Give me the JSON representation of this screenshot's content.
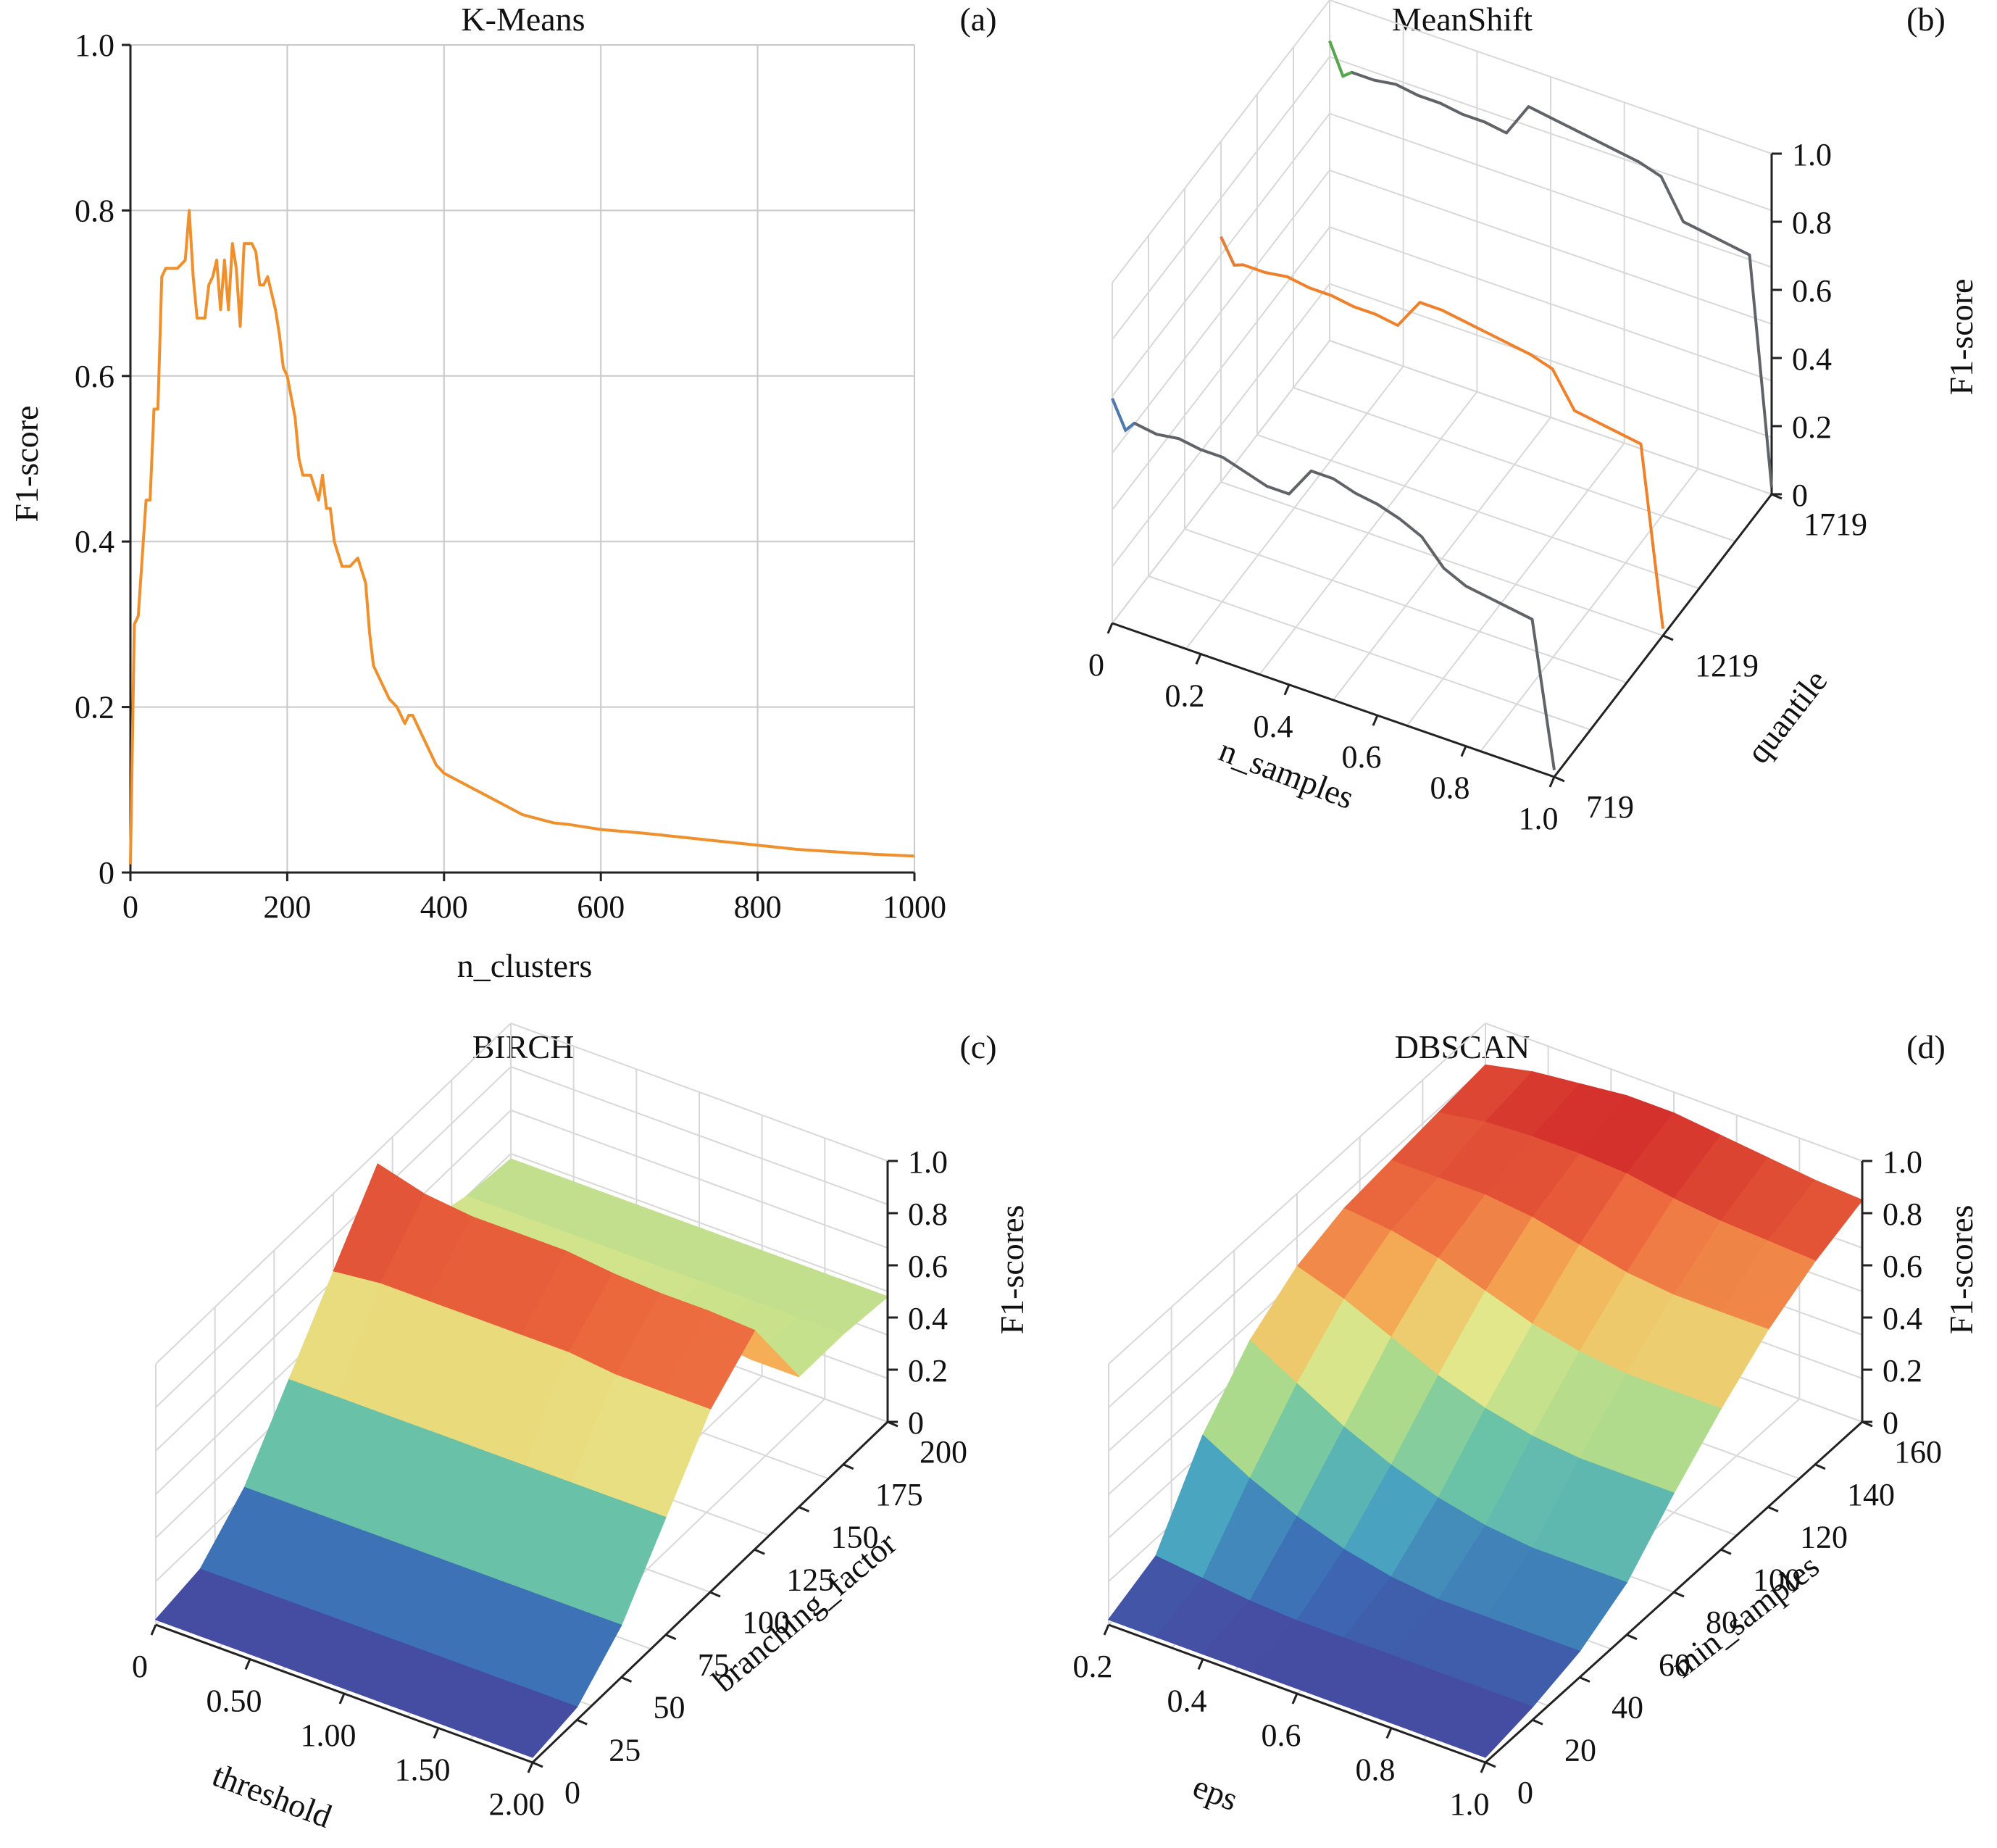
{
  "chart_data": [
    {
      "panel": "(a)",
      "type": "line",
      "title": "K-Means",
      "xlabel": "n_clusters",
      "ylabel": "F1-score",
      "xlim": [
        0,
        1000
      ],
      "ylim": [
        0,
        1.0
      ],
      "xticks": [
        "0",
        "200",
        "400",
        "600",
        "800",
        "1000"
      ],
      "yticks": [
        "0",
        "0.2",
        "0.4",
        "0.6",
        "0.8",
        "1.0"
      ],
      "grid": true,
      "color": "#f0902c",
      "x": [
        0,
        5,
        10,
        20,
        25,
        30,
        35,
        40,
        45,
        50,
        60,
        70,
        75,
        80,
        85,
        90,
        95,
        100,
        105,
        110,
        115,
        120,
        125,
        130,
        135,
        140,
        145,
        150,
        155,
        160,
        165,
        170,
        175,
        180,
        185,
        190,
        195,
        200,
        210,
        215,
        220,
        230,
        240,
        245,
        250,
        255,
        260,
        270,
        280,
        290,
        300,
        305,
        310,
        320,
        330,
        340,
        350,
        355,
        360,
        370,
        380,
        390,
        400,
        420,
        440,
        460,
        480,
        500,
        520,
        540,
        560,
        580,
        600,
        650,
        700,
        750,
        800,
        850,
        900,
        950,
        1000
      ],
      "y": [
        0.01,
        0.3,
        0.31,
        0.45,
        0.45,
        0.56,
        0.56,
        0.72,
        0.73,
        0.73,
        0.73,
        0.74,
        0.8,
        0.72,
        0.67,
        0.67,
        0.67,
        0.71,
        0.72,
        0.74,
        0.68,
        0.74,
        0.68,
        0.76,
        0.73,
        0.66,
        0.76,
        0.76,
        0.76,
        0.75,
        0.71,
        0.71,
        0.72,
        0.7,
        0.68,
        0.65,
        0.61,
        0.6,
        0.55,
        0.5,
        0.48,
        0.48,
        0.45,
        0.48,
        0.44,
        0.44,
        0.4,
        0.37,
        0.37,
        0.38,
        0.35,
        0.29,
        0.25,
        0.23,
        0.21,
        0.2,
        0.18,
        0.19,
        0.19,
        0.17,
        0.15,
        0.13,
        0.12,
        0.11,
        0.1,
        0.09,
        0.08,
        0.07,
        0.065,
        0.06,
        0.058,
        0.055,
        0.052,
        0.048,
        0.043,
        0.038,
        0.033,
        0.028,
        0.025,
        0.022,
        0.02
      ]
    },
    {
      "panel": "(b)",
      "type": "line",
      "projection": "3d",
      "title": "MeanShift",
      "xlabel": "n_samples",
      "ylabel": "quantile",
      "zlabel": "F1-score",
      "xlim": [
        0,
        1.0
      ],
      "ylim": [
        719,
        1719
      ],
      "zlim": [
        0,
        1.0
      ],
      "xticks": [
        "0",
        "0.2",
        "0.4",
        "0.6",
        "0.8",
        "1.0"
      ],
      "yticks": [
        "719",
        "1219",
        "1719"
      ],
      "zticks": [
        "0",
        "0.2",
        "0.4",
        "0.6",
        "0.8",
        "1.0"
      ],
      "grid": true,
      "x": [
        0.0,
        0.03,
        0.05,
        0.1,
        0.15,
        0.2,
        0.25,
        0.3,
        0.35,
        0.4,
        0.45,
        0.5,
        0.55,
        0.6,
        0.65,
        0.7,
        0.75,
        0.8,
        0.85,
        0.9,
        0.95,
        1.0
      ],
      "series": [
        {
          "quantile": 719,
          "color": "#606368",
          "accent": "#4a7fc1",
          "values": [
            0.66,
            0.58,
            0.61,
            0.6,
            0.61,
            0.6,
            0.6,
            0.58,
            0.56,
            0.56,
            0.65,
            0.65,
            0.63,
            0.62,
            0.6,
            0.57,
            0.5,
            0.47,
            0.46,
            0.45,
            0.44,
            0.02
          ]
        },
        {
          "quantile": 1219,
          "color": "#f0802a",
          "accent": "#e0803a",
          "values": [
            0.72,
            0.65,
            0.66,
            0.66,
            0.67,
            0.66,
            0.66,
            0.65,
            0.65,
            0.64,
            0.73,
            0.73,
            0.72,
            0.71,
            0.7,
            0.69,
            0.67,
            0.57,
            0.56,
            0.55,
            0.54,
            0.02
          ]
        },
        {
          "quantile": 1719,
          "color": "#606368",
          "accent": "#54b847",
          "values": [
            0.88,
            0.79,
            0.81,
            0.81,
            0.82,
            0.81,
            0.81,
            0.8,
            0.8,
            0.79,
            0.89,
            0.88,
            0.87,
            0.86,
            0.85,
            0.84,
            0.82,
            0.71,
            0.7,
            0.69,
            0.68,
            0.02
          ]
        }
      ]
    },
    {
      "panel": "(c)",
      "type": "surface",
      "title": "BIRCH",
      "xlabel": "threshold",
      "ylabel": "branching_factor",
      "zlabel": "F1-scores",
      "xlim": [
        0,
        2.0
      ],
      "ylim": [
        0,
        200
      ],
      "zlim": [
        0,
        1.0
      ],
      "xticks": [
        "0",
        "0.50",
        "1.00",
        "1.50",
        "2.00"
      ],
      "yticks": [
        "0",
        "25",
        "50",
        "75",
        "100",
        "125",
        "150",
        "175",
        "200"
      ],
      "zticks": [
        "0",
        "0.2",
        "0.4",
        "0.6",
        "0.8",
        "1.0"
      ],
      "grid": true,
      "x": [
        0,
        0.25,
        0.5,
        0.75,
        1.0,
        1.25,
        1.5,
        1.75,
        2.0
      ],
      "y": [
        0,
        25,
        50,
        75,
        100,
        125,
        150,
        175,
        200
      ],
      "z": [
        [
          0.02,
          0.02,
          0.02,
          0.02,
          0.02,
          0.02,
          0.02,
          0.02,
          0.02
        ],
        [
          0.05,
          0.05,
          0.05,
          0.05,
          0.05,
          0.05,
          0.05,
          0.05,
          0.05
        ],
        [
          0.2,
          0.2,
          0.2,
          0.2,
          0.2,
          0.2,
          0.2,
          0.2,
          0.2
        ],
        [
          0.45,
          0.45,
          0.45,
          0.45,
          0.45,
          0.45,
          0.45,
          0.45,
          0.45
        ],
        [
          0.7,
          0.72,
          0.72,
          0.72,
          0.72,
          0.72,
          0.7,
          0.7,
          0.7
        ],
        [
          0.95,
          0.9,
          0.88,
          0.88,
          0.88,
          0.86,
          0.85,
          0.85,
          0.84
        ],
        [
          0.55,
          0.54,
          0.54,
          0.54,
          0.54,
          0.52,
          0.52,
          0.5,
          0.5
        ],
        [
          0.5,
          0.5,
          0.5,
          0.5,
          0.5,
          0.5,
          0.5,
          0.5,
          0.5
        ],
        [
          0.48,
          0.48,
          0.48,
          0.48,
          0.48,
          0.48,
          0.48,
          0.48,
          0.48
        ]
      ],
      "colormap": [
        "#4a3f9a",
        "#3b6cb5",
        "#4aa6c0",
        "#6cc4a6",
        "#a8d98d",
        "#e4e88a",
        "#f5b257",
        "#ec6a3e",
        "#d4302c",
        "#a51e38"
      ]
    },
    {
      "panel": "(d)",
      "type": "surface",
      "title": "DBSCAN",
      "xlabel": "eps",
      "ylabel": "min_samples",
      "zlabel": "F1-scores",
      "xlim": [
        0.2,
        1.0
      ],
      "ylim": [
        0,
        160
      ],
      "zlim": [
        0,
        1.0
      ],
      "xticks": [
        "0.2",
        "0.4",
        "0.6",
        "0.8",
        "1.0"
      ],
      "yticks": [
        "0",
        "20",
        "40",
        "60",
        "80",
        "100",
        "120",
        "140",
        "160"
      ],
      "zticks": [
        "0",
        "0.2",
        "0.4",
        "0.6",
        "0.8",
        "1.0"
      ],
      "grid": true,
      "x": [
        0.2,
        0.3,
        0.4,
        0.5,
        0.6,
        0.7,
        0.8,
        0.9,
        1.0
      ],
      "y": [
        0,
        20,
        40,
        60,
        80,
        100,
        120,
        140,
        160
      ],
      "z": [
        [
          0.02,
          0.02,
          0.02,
          0.02,
          0.02,
          0.02,
          0.02,
          0.02,
          0.02
        ],
        [
          0.1,
          0.08,
          0.06,
          0.05,
          0.05,
          0.05,
          0.05,
          0.05,
          0.05
        ],
        [
          0.4,
          0.3,
          0.22,
          0.16,
          0.12,
          0.1,
          0.1,
          0.1,
          0.1
        ],
        [
          0.6,
          0.5,
          0.4,
          0.32,
          0.26,
          0.22,
          0.2,
          0.2,
          0.2
        ],
        [
          0.72,
          0.66,
          0.58,
          0.5,
          0.44,
          0.4,
          0.38,
          0.38,
          0.38
        ],
        [
          0.78,
          0.76,
          0.72,
          0.66,
          0.6,
          0.56,
          0.54,
          0.54,
          0.54
        ],
        [
          0.8,
          0.8,
          0.8,
          0.78,
          0.74,
          0.7,
          0.68,
          0.68,
          0.68
        ],
        [
          0.82,
          0.85,
          0.86,
          0.86,
          0.85,
          0.82,
          0.8,
          0.79,
          0.78
        ],
        [
          0.84,
          0.88,
          0.9,
          0.92,
          0.92,
          0.9,
          0.88,
          0.86,
          0.85
        ]
      ],
      "colormap": [
        "#4a3f9a",
        "#3b6cb5",
        "#4aa6c0",
        "#6cc4a6",
        "#a8d98d",
        "#e4e88a",
        "#f5b257",
        "#ec6a3e",
        "#d4302c",
        "#a51e38"
      ]
    }
  ]
}
